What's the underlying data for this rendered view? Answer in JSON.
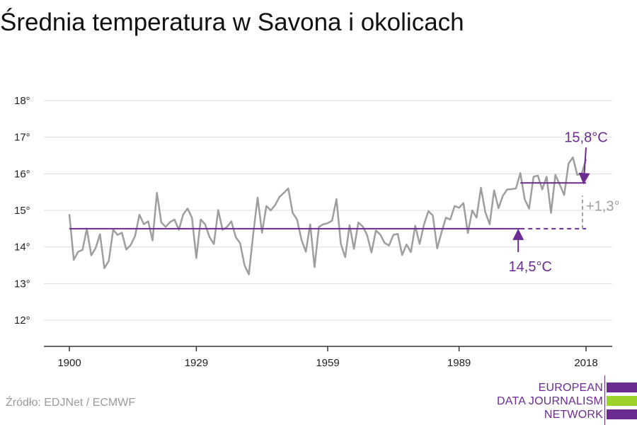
{
  "title": "Średnia temperatura w Savona i okolicach",
  "source": "Źródło: EDJNet / ECMWF",
  "logo": {
    "lines": [
      "EUROPEAN",
      "DATA JOURNALISM",
      "NETWORK"
    ],
    "colors": [
      "#6a2c91",
      "#9bd12a",
      "#6a2c91"
    ]
  },
  "colors": {
    "series": "#9e9e9e",
    "accent": "#6a2c91",
    "grid": "#dddddd",
    "annotation_grey": "#a0a0a0"
  },
  "chart_data": {
    "type": "line",
    "title": "Średnia temperatura w Savona i okolicach",
    "xlabel": "",
    "ylabel": "",
    "xlim": [
      1900,
      2018
    ],
    "ylim": [
      12,
      18
    ],
    "x_ticks": [
      1900,
      1929,
      1959,
      1989,
      2018
    ],
    "y_ticks": [
      {
        "value": 12,
        "label": "12°"
      },
      {
        "value": 13,
        "label": "13°"
      },
      {
        "value": 14,
        "label": "14°"
      },
      {
        "value": 15,
        "label": "15°"
      },
      {
        "value": 16,
        "label": "16°"
      },
      {
        "value": 17,
        "label": "17°"
      },
      {
        "value": 18,
        "label": "18°"
      }
    ],
    "grid": true,
    "x": [
      1900,
      1901,
      1902,
      1903,
      1904,
      1905,
      1906,
      1907,
      1908,
      1909,
      1910,
      1911,
      1912,
      1913,
      1914,
      1915,
      1916,
      1917,
      1918,
      1919,
      1920,
      1921,
      1922,
      1923,
      1924,
      1925,
      1926,
      1927,
      1928,
      1929,
      1930,
      1931,
      1932,
      1933,
      1934,
      1935,
      1936,
      1937,
      1938,
      1939,
      1940,
      1941,
      1942,
      1943,
      1944,
      1945,
      1946,
      1947,
      1948,
      1949,
      1950,
      1951,
      1952,
      1953,
      1954,
      1955,
      1956,
      1957,
      1958,
      1959,
      1960,
      1961,
      1962,
      1963,
      1964,
      1965,
      1966,
      1967,
      1968,
      1969,
      1970,
      1971,
      1972,
      1973,
      1974,
      1975,
      1976,
      1977,
      1978,
      1979,
      1980,
      1981,
      1982,
      1983,
      1984,
      1985,
      1986,
      1987,
      1988,
      1989,
      1990,
      1991,
      1992,
      1993,
      1994,
      1995,
      1996,
      1997,
      1998,
      1999,
      2000,
      2001,
      2002,
      2003,
      2004,
      2005,
      2006,
      2007,
      2008,
      2009,
      2010,
      2011,
      2012,
      2013,
      2014,
      2015,
      2016,
      2017,
      2018
    ],
    "y": [
      14.9,
      13.65,
      13.87,
      13.92,
      14.5,
      13.77,
      13.97,
      14.35,
      13.42,
      13.62,
      14.47,
      14.33,
      14.39,
      13.93,
      14.05,
      14.3,
      14.88,
      14.62,
      14.7,
      14.18,
      15.48,
      14.67,
      14.55,
      14.68,
      14.75,
      14.47,
      14.89,
      15.05,
      14.8,
      13.7,
      14.75,
      14.62,
      14.27,
      14.08,
      15.01,
      14.47,
      14.55,
      14.7,
      14.27,
      14.1,
      13.5,
      13.25,
      14.36,
      15.35,
      14.39,
      15.12,
      15.0,
      15.15,
      15.37,
      15.48,
      15.6,
      14.93,
      14.75,
      14.2,
      13.87,
      14.62,
      13.45,
      14.55,
      14.62,
      14.65,
      14.72,
      15.31,
      14.08,
      13.72,
      14.6,
      13.95,
      14.67,
      14.56,
      14.32,
      13.85,
      14.45,
      14.34,
      14.11,
      14.04,
      14.33,
      14.36,
      13.78,
      14.07,
      13.86,
      14.58,
      14.08,
      14.62,
      14.98,
      14.86,
      13.96,
      14.4,
      14.8,
      14.75,
      15.12,
      15.07,
      15.2,
      14.38,
      15.0,
      14.8,
      15.62,
      14.95,
      14.62,
      15.55,
      15.06,
      15.4,
      15.57,
      15.58,
      15.6,
      16.02,
      15.3,
      15.05,
      15.92,
      15.95,
      15.57,
      15.92,
      14.93,
      15.97,
      15.7,
      15.42,
      16.28,
      16.45,
      15.97,
      16.0,
      16.4
    ],
    "reference_lines": [
      {
        "label": "14,5°C",
        "value": 14.5,
        "x_start": 1900,
        "x_end": 2003,
        "style": "solid"
      },
      {
        "label": "",
        "value": 14.5,
        "x_start": 2003,
        "x_end": 2018,
        "style": "dashed"
      },
      {
        "label": "15,8°C",
        "value": 15.75,
        "x_start": 2003,
        "x_end": 2018,
        "style": "solid"
      }
    ],
    "difference_annotation": {
      "label": "+1,3°",
      "x": 2018,
      "from": 14.5,
      "to": 15.75
    }
  }
}
